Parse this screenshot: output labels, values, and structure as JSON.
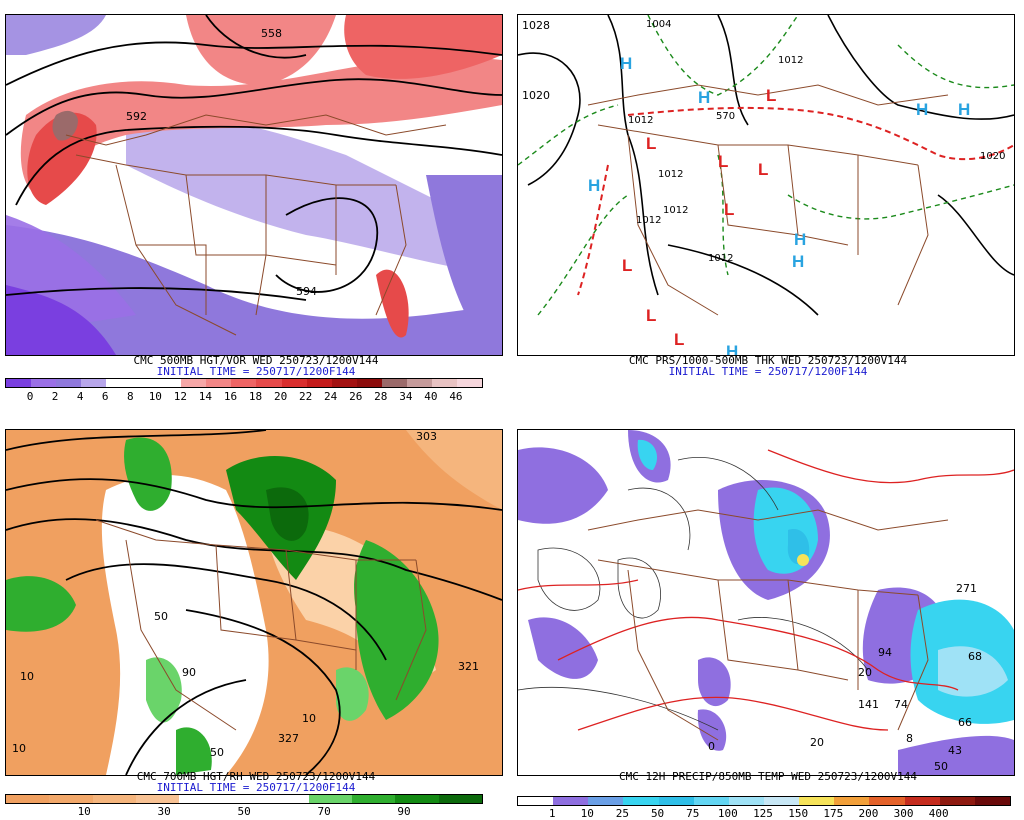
{
  "panels": [
    {
      "caption": "CMC 500MB HGT/VOR WED 250723/1200V144",
      "initial": "INITIAL TIME = 250717/1200F144",
      "colorbar": {
        "colors": [
          "#7a3fe0",
          "#9a6fe6",
          "#8f78dc",
          "#b7a6ea",
          "#ffffff",
          "#ffffff",
          "#ffffff",
          "#f6a7a7",
          "#f28686",
          "#ee6464",
          "#e64a4a",
          "#d92e2e",
          "#c41b1b",
          "#a31212",
          "#8c0c0c",
          "#9b6a6a",
          "#c69b9b",
          "#e8c2c2",
          "#f6d6dc"
        ],
        "labels": [
          "0",
          "2",
          "4",
          "6",
          "8",
          "10",
          "12",
          "14",
          "16",
          "18",
          "20",
          "22",
          "24",
          "26",
          "28",
          "34",
          "40",
          "46"
        ]
      },
      "map_labels": [
        "558",
        "592",
        "594"
      ]
    },
    {
      "caption": "CMC PRS/1000-500MB THK WED 250723/1200V144",
      "initial": "INITIAL TIME = 250717/1200F144",
      "map_labels": [
        "1028",
        "1020",
        "1004",
        "1012",
        "1012",
        "1012",
        "1012",
        "1012",
        "1012",
        "570",
        "1020"
      ],
      "highs": [
        "H",
        "H",
        "H",
        "H",
        "H",
        "H",
        "H",
        "H"
      ],
      "lows": [
        "L",
        "L",
        "L",
        "L",
        "L",
        "L",
        "L",
        "L"
      ]
    },
    {
      "caption": "CMC 700MB HGT/RH WED 250723/1200V144",
      "initial": "INITIAL TIME = 250717/1200F144",
      "colorbar": {
        "colors": [
          "#f0a060",
          "#f2a86a",
          "#f5b57d",
          "#f8c294",
          "#ffffff",
          "#ffffff",
          "#ffffff",
          "#6ad46a",
          "#2fae2f",
          "#138a13",
          "#0c6a0c"
        ],
        "labels": [
          "10",
          "30",
          "50",
          "70",
          "90"
        ]
      },
      "map_labels": [
        "10",
        "50",
        "90",
        "303",
        "321",
        "327",
        "10",
        "50",
        "10"
      ]
    },
    {
      "caption": "CMC 12H PRECIP/850MB TEMP WED 250723/1200V144",
      "colorbar": {
        "colors": [
          "#ffffff",
          "#8f6fe0",
          "#6a9fe6",
          "#38d4f0",
          "#2fbfe8",
          "#63d6f3",
          "#9fe2f6",
          "#c7e7f5",
          "#f6e35a",
          "#f2a03a",
          "#e4622a",
          "#c52c1e",
          "#8e1a10",
          "#6a0a0a"
        ],
        "labels": [
          "1",
          "10",
          "25",
          "50",
          "75",
          "100",
          "125",
          "150",
          "175",
          "200",
          "300",
          "400"
        ]
      },
      "map_labels": [
        "20",
        "94",
        "74",
        "141",
        "68",
        "271",
        "43",
        "66",
        "0",
        "20",
        "8",
        "50"
      ]
    }
  ]
}
